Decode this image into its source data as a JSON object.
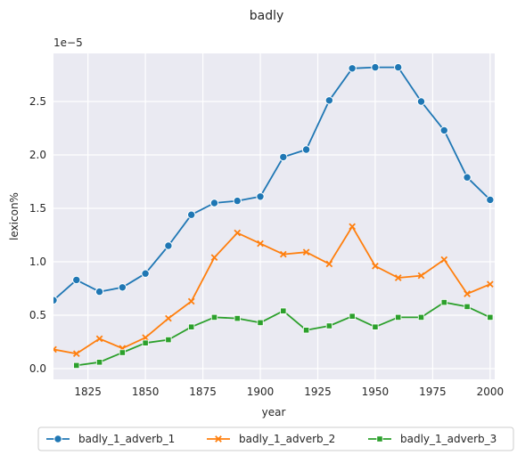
{
  "chart_data": {
    "type": "line",
    "title": "badly",
    "xlabel": "year",
    "ylabel": "lexicon%",
    "y_multiplier_label": "1e−5",
    "xlim": [
      1810,
      2002
    ],
    "ylim": [
      -0.1,
      2.95
    ],
    "x_ticks": [
      1825,
      1850,
      1875,
      1900,
      1925,
      1950,
      1975,
      2000
    ],
    "y_ticks": [
      0.0,
      0.5,
      1.0,
      1.5,
      2.0,
      2.5
    ],
    "y_tick_labels": [
      "0.0",
      "0.5",
      "1.0",
      "1.5",
      "2.0",
      "2.5"
    ],
    "grid": true,
    "legend_position": "bottom",
    "series": [
      {
        "name": "badly_1_adverb_1",
        "color": "#1f77b4",
        "marker": "circle",
        "x": [
          1810,
          1820,
          1830,
          1840,
          1850,
          1860,
          1870,
          1880,
          1890,
          1900,
          1910,
          1920,
          1930,
          1940,
          1950,
          1960,
          1970,
          1980,
          1990,
          2000
        ],
        "values": [
          0.64,
          0.83,
          0.72,
          0.76,
          0.89,
          1.15,
          1.44,
          1.55,
          1.57,
          1.61,
          1.98,
          2.05,
          2.51,
          2.81,
          2.82,
          2.82,
          2.5,
          2.23,
          1.79,
          1.58
        ]
      },
      {
        "name": "badly_1_adverb_2",
        "color": "#ff7f0e",
        "marker": "x",
        "x": [
          1810,
          1820,
          1830,
          1840,
          1850,
          1860,
          1870,
          1880,
          1890,
          1900,
          1910,
          1920,
          1930,
          1940,
          1950,
          1960,
          1970,
          1980,
          1990,
          2000
        ],
        "values": [
          0.18,
          0.14,
          0.28,
          0.19,
          0.29,
          0.47,
          0.63,
          1.04,
          1.27,
          1.17,
          1.07,
          1.09,
          0.98,
          1.33,
          0.96,
          0.85,
          0.87,
          1.02,
          0.7,
          0.79
        ]
      },
      {
        "name": "badly_1_adverb_3",
        "color": "#2ca02c",
        "marker": "square",
        "x": [
          1820,
          1830,
          1840,
          1850,
          1860,
          1870,
          1880,
          1890,
          1900,
          1910,
          1920,
          1930,
          1940,
          1950,
          1960,
          1970,
          1980,
          1990,
          2000
        ],
        "values": [
          0.03,
          0.06,
          0.15,
          0.24,
          0.27,
          0.39,
          0.48,
          0.47,
          0.43,
          0.54,
          0.36,
          0.4,
          0.49,
          0.39,
          0.48,
          0.48,
          0.62,
          0.58,
          0.48
        ]
      }
    ]
  }
}
